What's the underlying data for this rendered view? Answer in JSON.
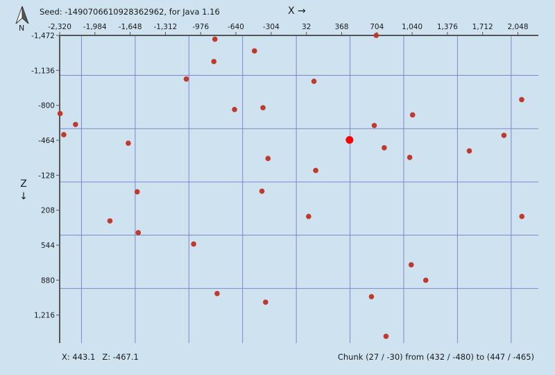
{
  "header": {
    "seed_text": "Seed: -1490706610928362962, for Java 1.16",
    "north_label": "N",
    "north_icon": "compass-north-arrow-icon",
    "x_axis_label": "X →",
    "z_axis_label_letter": "Z",
    "z_axis_label_arrow": "↓"
  },
  "colors": {
    "background": "#cfe2f0",
    "grid": "#7d86cc",
    "axis": "#555555",
    "marker": "#c0392b",
    "player": "#ff0000"
  },
  "chart_data": {
    "type": "scatter",
    "x_ticks": [
      "-2,320",
      "-1,984",
      "-1,648",
      "-1,312",
      "-976",
      "-640",
      "-304",
      "32",
      "368",
      "704",
      "1,040",
      "1,376",
      "1,712",
      "2,048"
    ],
    "z_ticks": [
      "-1,472",
      "-1,136",
      "-800",
      "-464",
      "-128",
      "208",
      "544",
      "880",
      "1,216"
    ],
    "x_tick_values": [
      -2320,
      -1984,
      -1648,
      -1312,
      -976,
      -640,
      -304,
      32,
      368,
      704,
      1040,
      1376,
      1712,
      2048
    ],
    "z_tick_values": [
      -1472,
      -1136,
      -800,
      -464,
      -128,
      208,
      544,
      880,
      1216
    ],
    "grid_x": [
      -2112,
      -1600,
      -1088,
      -576,
      -64,
      448,
      960,
      1472,
      1984
    ],
    "grid_z": [
      -1088,
      -576,
      -64,
      448,
      960
    ],
    "xlim": [
      -2320,
      2243
    ],
    "zlim": [
      -1472,
      1485
    ],
    "structures": [
      {
        "x": -2316,
        "z": -721
      },
      {
        "x": -2281,
        "z": -518
      },
      {
        "x": -2169,
        "z": -616
      },
      {
        "x": -1841,
        "z": 311
      },
      {
        "x": -1666,
        "z": -436
      },
      {
        "x": -1581,
        "z": 31
      },
      {
        "x": -1571,
        "z": 424
      },
      {
        "x": -1113,
        "z": -1053
      },
      {
        "x": -1043,
        "z": 533
      },
      {
        "x": -850,
        "z": -1221
      },
      {
        "x": -840,
        "z": -1436
      },
      {
        "x": -819,
        "z": 1009
      },
      {
        "x": -653,
        "z": -760
      },
      {
        "x": -463,
        "z": -1323
      },
      {
        "x": -392,
        "z": 25
      },
      {
        "x": -382,
        "z": -777
      },
      {
        "x": -357,
        "z": 1092
      },
      {
        "x": -334,
        "z": -289
      },
      {
        "x": 53,
        "z": 268
      },
      {
        "x": 104,
        "z": -1031
      },
      {
        "x": 121,
        "z": -174
      },
      {
        "x": 652,
        "z": 1039
      },
      {
        "x": 679,
        "z": -606
      },
      {
        "x": 698,
        "z": -1472
      },
      {
        "x": 774,
        "z": -392
      },
      {
        "x": 791,
        "z": 1420
      },
      {
        "x": 1017,
        "z": -299
      },
      {
        "x": 1031,
        "z": 733
      },
      {
        "x": 1044,
        "z": -708
      },
      {
        "x": 1170,
        "z": 881
      },
      {
        "x": 1585,
        "z": -362
      },
      {
        "x": 1915,
        "z": -511
      },
      {
        "x": 2084,
        "z": -855
      },
      {
        "x": 2086,
        "z": 268
      }
    ],
    "player": {
      "x": 443.1,
      "z": -467.1
    }
  },
  "footer": {
    "x_coord": "X: 443.1",
    "z_coord": "Z: -467.1",
    "chunk_text": "Chunk (27 / -30) from (432 / -480) to (447 / -465)"
  }
}
